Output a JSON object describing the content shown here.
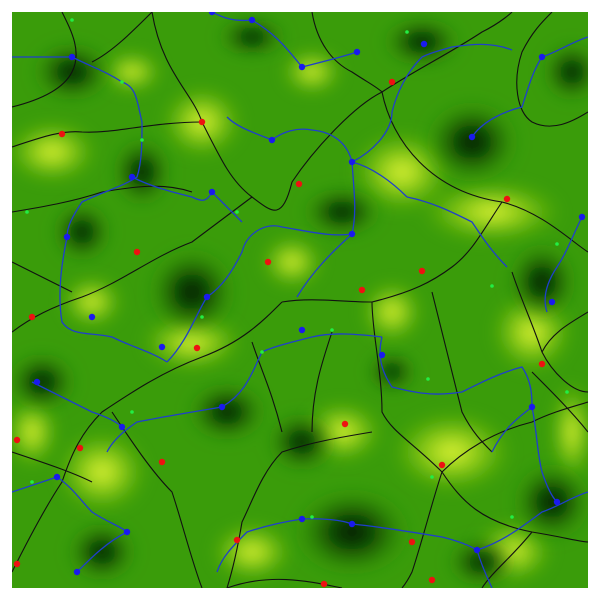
{
  "scene": {
    "description_tags": [
      "terrain-heightmap",
      "watershed",
      "drainage-network"
    ],
    "colors": {
      "background": "#ffffff",
      "low": "#000000",
      "mid": "#2f9a05",
      "high": "#f0ff3a",
      "ridge_line": "#111111",
      "river_line": "#1f3fcc",
      "pit_marker": "#1a1aee",
      "peak_marker": "#ee1111",
      "saddle_marker": "#22ee44"
    },
    "legend_semantics": {
      "pit_marker": "local-minimum",
      "peak_marker": "local-maximum",
      "saddle_marker": "saddle-point"
    }
  }
}
